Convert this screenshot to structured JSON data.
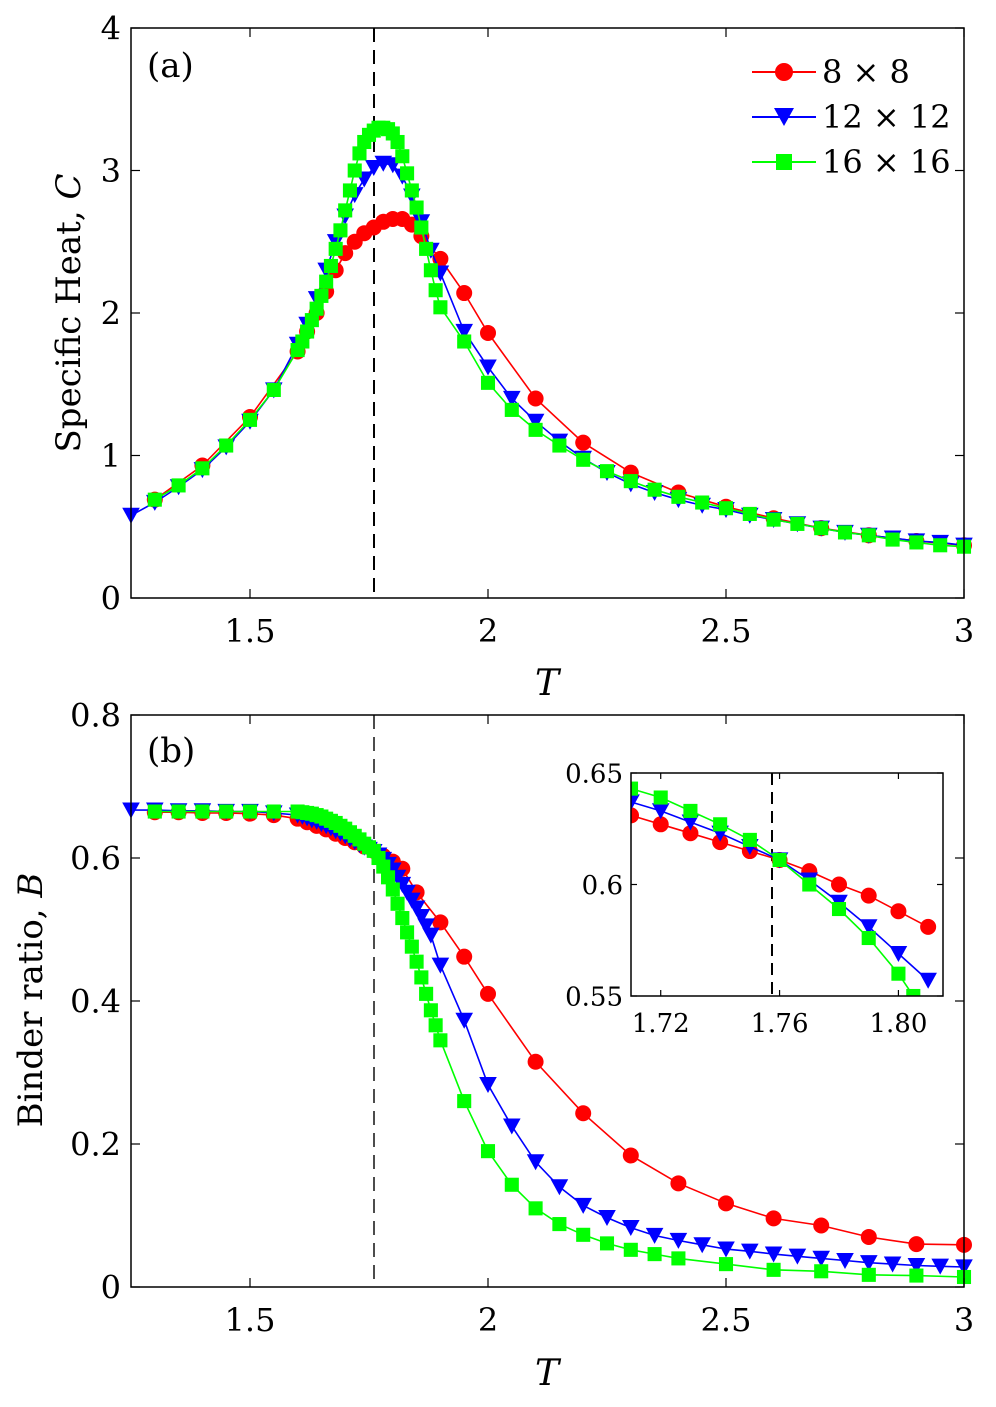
{
  "colors": {
    "s8": "#ff0000",
    "s12": "#0000ff",
    "s16": "#00ff00",
    "axis": "#000000"
  },
  "chart_data": [
    {
      "id": "a",
      "type": "line",
      "panel_label": "(a)",
      "xlabel": "T",
      "ylabel": "Specific Heat, ",
      "ylabel_var": "C",
      "xlim": [
        1.25,
        3.0
      ],
      "ylim": [
        0,
        4
      ],
      "xticks": [
        1.5,
        2,
        2.5,
        3
      ],
      "xtick_labels": [
        "1.5",
        "2",
        "2.5",
        "3"
      ],
      "yticks": [
        0,
        1,
        2,
        3,
        4
      ],
      "ytick_labels": [
        "0",
        "1",
        "2",
        "3",
        "4"
      ],
      "vline": 1.76,
      "legend_position": "top-right",
      "series": [
        {
          "name": "8 × 8",
          "color": "#ff0000",
          "marker": "circle",
          "x": [
            1.3,
            1.4,
            1.5,
            1.6,
            1.62,
            1.64,
            1.66,
            1.68,
            1.7,
            1.72,
            1.74,
            1.76,
            1.78,
            1.8,
            1.82,
            1.84,
            1.86,
            1.9,
            1.95,
            2.0,
            2.1,
            2.2,
            2.3,
            2.4,
            2.5,
            2.6,
            2.7,
            2.8,
            2.9,
            3.0
          ],
          "y": [
            0.69,
            0.93,
            1.27,
            1.73,
            1.87,
            2.0,
            2.15,
            2.3,
            2.42,
            2.5,
            2.56,
            2.6,
            2.64,
            2.66,
            2.66,
            2.62,
            2.54,
            2.38,
            2.14,
            1.86,
            1.4,
            1.09,
            0.88,
            0.74,
            0.64,
            0.56,
            0.49,
            0.44,
            0.4,
            0.37
          ]
        },
        {
          "name": "12 × 12",
          "color": "#0000ff",
          "marker": "triangle-down",
          "x": [
            1.25,
            1.3,
            1.35,
            1.4,
            1.45,
            1.5,
            1.55,
            1.6,
            1.62,
            1.64,
            1.66,
            1.68,
            1.7,
            1.72,
            1.74,
            1.76,
            1.78,
            1.8,
            1.82,
            1.84,
            1.86,
            1.88,
            1.9,
            1.95,
            2.0,
            2.05,
            2.1,
            2.15,
            2.2,
            2.25,
            2.3,
            2.35,
            2.4,
            2.45,
            2.5,
            2.55,
            2.6,
            2.65,
            2.7,
            2.75,
            2.8,
            2.85,
            2.9,
            2.95,
            3.0
          ],
          "y": [
            0.58,
            0.67,
            0.78,
            0.9,
            1.06,
            1.24,
            1.46,
            1.78,
            1.92,
            2.1,
            2.3,
            2.5,
            2.68,
            2.83,
            2.94,
            3.02,
            3.05,
            3.04,
            2.96,
            2.82,
            2.64,
            2.44,
            2.28,
            1.87,
            1.62,
            1.4,
            1.24,
            1.1,
            0.98,
            0.88,
            0.8,
            0.74,
            0.69,
            0.65,
            0.62,
            0.58,
            0.55,
            0.52,
            0.49,
            0.46,
            0.44,
            0.42,
            0.4,
            0.39,
            0.37
          ]
        },
        {
          "name": "16 × 16",
          "color": "#00ff00",
          "marker": "square",
          "x": [
            1.3,
            1.35,
            1.4,
            1.45,
            1.5,
            1.55,
            1.6,
            1.61,
            1.62,
            1.63,
            1.64,
            1.65,
            1.66,
            1.67,
            1.68,
            1.69,
            1.7,
            1.71,
            1.72,
            1.73,
            1.74,
            1.75,
            1.76,
            1.77,
            1.78,
            1.79,
            1.8,
            1.81,
            1.82,
            1.83,
            1.84,
            1.85,
            1.86,
            1.87,
            1.88,
            1.89,
            1.9,
            1.95,
            2.0,
            2.05,
            2.1,
            2.15,
            2.2,
            2.25,
            2.3,
            2.35,
            2.4,
            2.45,
            2.5,
            2.55,
            2.6,
            2.65,
            2.7,
            2.75,
            2.8,
            2.85,
            2.9,
            2.95,
            3.0
          ],
          "y": [
            0.69,
            0.79,
            0.91,
            1.07,
            1.25,
            1.46,
            1.74,
            1.8,
            1.87,
            1.95,
            2.03,
            2.12,
            2.22,
            2.33,
            2.45,
            2.58,
            2.72,
            2.86,
            3.0,
            3.12,
            3.2,
            3.25,
            3.28,
            3.3,
            3.3,
            3.29,
            3.26,
            3.2,
            3.1,
            2.98,
            2.86,
            2.74,
            2.6,
            2.45,
            2.3,
            2.16,
            2.04,
            1.8,
            1.51,
            1.32,
            1.18,
            1.07,
            0.97,
            0.89,
            0.82,
            0.76,
            0.71,
            0.67,
            0.63,
            0.59,
            0.55,
            0.52,
            0.49,
            0.46,
            0.44,
            0.41,
            0.39,
            0.37,
            0.36
          ]
        }
      ]
    },
    {
      "id": "b",
      "type": "line",
      "panel_label": "(b)",
      "xlabel": "T",
      "ylabel": "Binder ratio, ",
      "ylabel_var": "B",
      "xlim": [
        1.25,
        3.0
      ],
      "ylim": [
        0,
        0.8
      ],
      "xticks": [
        1.5,
        2,
        2.5,
        3
      ],
      "xtick_labels": [
        "1.5",
        "2",
        "2.5",
        "3"
      ],
      "yticks": [
        0,
        0.2,
        0.4,
        0.6,
        0.8
      ],
      "ytick_labels": [
        "0",
        "0.2",
        "0.4",
        "0.6",
        "0.8"
      ],
      "vline": 1.76,
      "series": [
        {
          "name": "8 × 8",
          "color": "#ff0000",
          "marker": "circle",
          "x": [
            1.3,
            1.35,
            1.4,
            1.45,
            1.5,
            1.55,
            1.6,
            1.62,
            1.64,
            1.66,
            1.68,
            1.7,
            1.72,
            1.74,
            1.76,
            1.78,
            1.8,
            1.82,
            1.85,
            1.9,
            1.95,
            2.0,
            2.1,
            2.2,
            2.3,
            2.4,
            2.5,
            2.6,
            2.7,
            2.8,
            2.9,
            3.0
          ],
          "y": [
            0.664,
            0.664,
            0.663,
            0.663,
            0.662,
            0.66,
            0.655,
            0.65,
            0.645,
            0.64,
            0.634,
            0.628,
            0.622,
            0.616,
            0.61,
            0.603,
            0.595,
            0.585,
            0.552,
            0.51,
            0.462,
            0.41,
            0.315,
            0.243,
            0.184,
            0.145,
            0.117,
            0.096,
            0.086,
            0.07,
            0.06,
            0.059
          ]
        },
        {
          "name": "12 × 12",
          "color": "#0000ff",
          "marker": "triangle-down",
          "x": [
            1.25,
            1.3,
            1.35,
            1.4,
            1.45,
            1.5,
            1.55,
            1.6,
            1.61,
            1.62,
            1.63,
            1.64,
            1.65,
            1.66,
            1.67,
            1.68,
            1.69,
            1.7,
            1.71,
            1.72,
            1.73,
            1.74,
            1.75,
            1.76,
            1.77,
            1.78,
            1.79,
            1.8,
            1.81,
            1.82,
            1.83,
            1.84,
            1.85,
            1.86,
            1.87,
            1.88,
            1.9,
            1.95,
            2.0,
            2.05,
            2.1,
            2.15,
            2.2,
            2.25,
            2.3,
            2.35,
            2.4,
            2.45,
            2.5,
            2.55,
            2.6,
            2.65,
            2.7,
            2.75,
            2.8,
            2.85,
            2.9,
            2.95,
            3.0
          ],
          "y": [
            0.667,
            0.667,
            0.666,
            0.666,
            0.665,
            0.665,
            0.663,
            0.66,
            0.658,
            0.656,
            0.653,
            0.651,
            0.648,
            0.645,
            0.642,
            0.638,
            0.635,
            0.631,
            0.627,
            0.623,
            0.619,
            0.615,
            0.612,
            0.609,
            0.604,
            0.598,
            0.591,
            0.583,
            0.573,
            0.563,
            0.552,
            0.541,
            0.53,
            0.518,
            0.505,
            0.492,
            0.45,
            0.373,
            0.283,
            0.225,
            0.175,
            0.14,
            0.114,
            0.097,
            0.083,
            0.072,
            0.065,
            0.059,
            0.053,
            0.05,
            0.046,
            0.043,
            0.04,
            0.037,
            0.034,
            0.032,
            0.03,
            0.029,
            0.028
          ]
        },
        {
          "name": "16 × 16",
          "color": "#00ff00",
          "marker": "square",
          "x": [
            1.3,
            1.35,
            1.4,
            1.45,
            1.5,
            1.55,
            1.6,
            1.61,
            1.62,
            1.63,
            1.64,
            1.65,
            1.66,
            1.67,
            1.68,
            1.69,
            1.7,
            1.71,
            1.72,
            1.73,
            1.74,
            1.75,
            1.76,
            1.77,
            1.78,
            1.79,
            1.8,
            1.81,
            1.82,
            1.83,
            1.84,
            1.85,
            1.86,
            1.87,
            1.88,
            1.89,
            1.9,
            1.95,
            2.0,
            2.05,
            2.1,
            2.15,
            2.2,
            2.25,
            2.3,
            2.35,
            2.4,
            2.5,
            2.6,
            2.7,
            2.8,
            2.9,
            3.0
          ],
          "y": [
            0.665,
            0.665,
            0.665,
            0.665,
            0.665,
            0.665,
            0.665,
            0.664,
            0.663,
            0.662,
            0.66,
            0.658,
            0.655,
            0.652,
            0.649,
            0.645,
            0.641,
            0.636,
            0.631,
            0.626,
            0.62,
            0.615,
            0.61,
            0.6,
            0.588,
            0.573,
            0.556,
            0.536,
            0.516,
            0.496,
            0.476,
            0.455,
            0.433,
            0.41,
            0.387,
            0.366,
            0.345,
            0.26,
            0.19,
            0.143,
            0.11,
            0.088,
            0.073,
            0.061,
            0.052,
            0.046,
            0.04,
            0.032,
            0.024,
            0.022,
            0.017,
            0.016,
            0.014
          ]
        }
      ],
      "inset": {
        "xlim": [
          1.71,
          1.815
        ],
        "ylim": [
          0.55,
          0.65
        ],
        "xticks": [
          1.72,
          1.76,
          1.8
        ],
        "xtick_labels": [
          "1.72",
          "1.76",
          "1.80"
        ],
        "yticks": [
          0.55,
          0.6,
          0.65
        ],
        "ytick_labels": [
          "0.55",
          "0.6",
          "0.65"
        ],
        "vline": 1.76,
        "series": [
          {
            "name": "8 × 8",
            "color": "#ff0000",
            "marker": "circle",
            "x": [
              1.71,
              1.72,
              1.73,
              1.74,
              1.75,
              1.76,
              1.77,
              1.78,
              1.79,
              1.8,
              1.81
            ],
            "y": [
              0.631,
              0.627,
              0.623,
              0.619,
              0.615,
              0.611,
              0.606,
              0.6,
              0.595,
              0.588,
              0.581
            ]
          },
          {
            "name": "12 × 12",
            "color": "#0000ff",
            "marker": "triangle-down",
            "x": [
              1.71,
              1.72,
              1.73,
              1.74,
              1.75,
              1.76,
              1.77,
              1.78,
              1.79,
              1.8,
              1.81
            ],
            "y": [
              0.637,
              0.633,
              0.628,
              0.623,
              0.617,
              0.611,
              0.602,
              0.592,
              0.581,
              0.569,
              0.557
            ]
          },
          {
            "name": "16 × 16",
            "color": "#00ff00",
            "marker": "square",
            "x": [
              1.71,
              1.72,
              1.73,
              1.74,
              1.75,
              1.76,
              1.77,
              1.78,
              1.79,
              1.8,
              1.805
            ],
            "y": [
              0.643,
              0.639,
              0.633,
              0.627,
              0.62,
              0.611,
              0.6,
              0.589,
              0.576,
              0.56,
              0.55
            ]
          }
        ]
      }
    }
  ]
}
